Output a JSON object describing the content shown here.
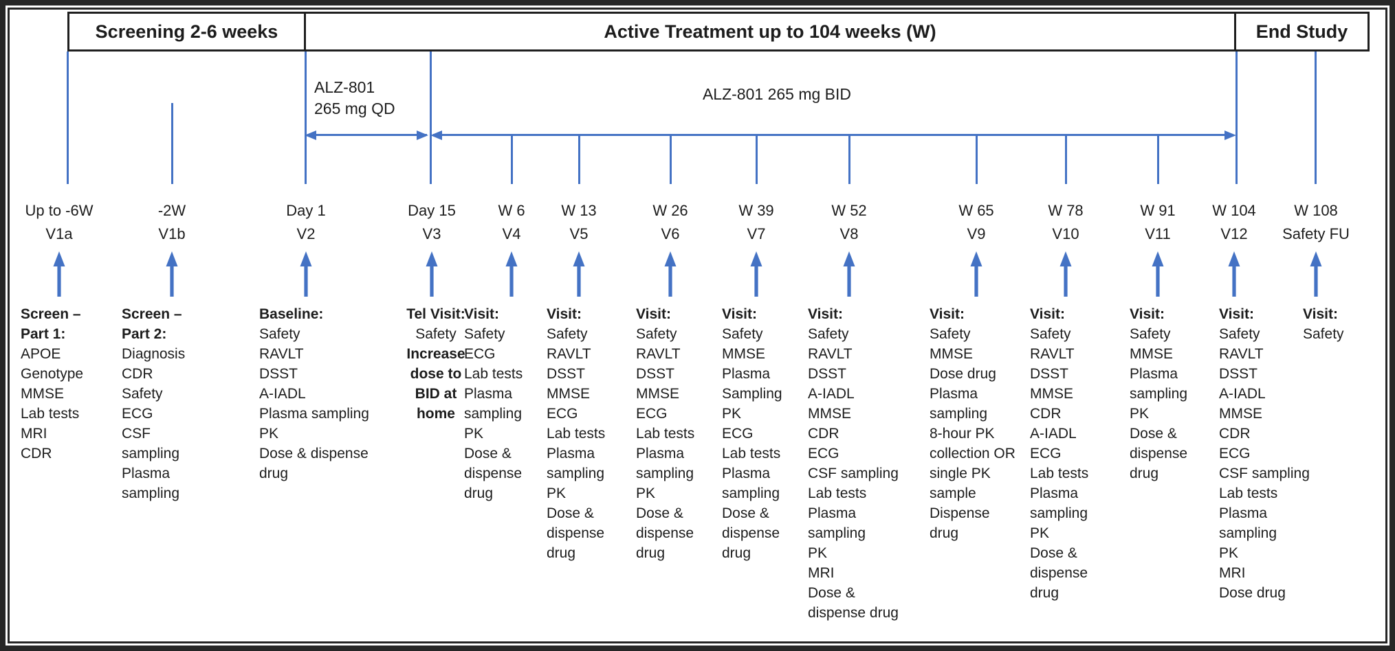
{
  "phases": [
    {
      "label": "Screening 2-6 weeks"
    },
    {
      "label": "Active Treatment up to 104 weeks (W)"
    },
    {
      "label": "End Study"
    }
  ],
  "dosing": {
    "qd_line1": "ALZ-801",
    "qd_line2": "265 mg QD",
    "bid_label": "ALZ-801 265 mg BID"
  },
  "colors": {
    "accent_blue": "#4472C4",
    "border_black": "#262626",
    "text_black": "#1c1c1c"
  },
  "visits": [
    {
      "time": "Up to -6W",
      "visit": "V1a",
      "lines": [
        {
          "text": "Screen –",
          "bold": true
        },
        {
          "text": "Part 1:",
          "bold": true
        },
        {
          "text": "APOE"
        },
        {
          "text": "Genotype"
        },
        {
          "text": "MMSE"
        },
        {
          "text": "Lab tests"
        },
        {
          "text": "MRI"
        },
        {
          "text": "CDR"
        }
      ]
    },
    {
      "time": "-2W",
      "visit": "V1b",
      "lines": [
        {
          "text": "Screen –",
          "bold": true
        },
        {
          "text": "Part 2:",
          "bold": true
        },
        {
          "text": "Diagnosis"
        },
        {
          "text": "CDR"
        },
        {
          "text": "Safety"
        },
        {
          "text": "ECG"
        },
        {
          "text": "CSF"
        },
        {
          "text": "sampling"
        },
        {
          "text": "Plasma"
        },
        {
          "text": "sampling"
        }
      ]
    },
    {
      "time": "Day 1",
      "visit": "V2",
      "lines": [
        {
          "text": "Baseline:",
          "bold": true
        },
        {
          "text": "Safety"
        },
        {
          "text": "RAVLT"
        },
        {
          "text": "DSST"
        },
        {
          "text": "A-IADL"
        },
        {
          "text": "Plasma sampling"
        },
        {
          "text": "PK"
        },
        {
          "text": "Dose & dispense"
        },
        {
          "text": "drug"
        }
      ]
    },
    {
      "time": "Day 15",
      "visit": "V3",
      "lines": [
        {
          "text": "Tel Visit:",
          "bold": true
        },
        {
          "text": "Safety"
        },
        {
          "text": "Increase",
          "bold": true
        },
        {
          "text": "dose to",
          "bold": true
        },
        {
          "text": "BID at",
          "bold": true
        },
        {
          "text": "home",
          "bold": true
        }
      ]
    },
    {
      "time": "W 6",
      "visit": "V4",
      "lines": [
        {
          "text": "Visit:",
          "bold": true
        },
        {
          "text": "Safety"
        },
        {
          "text": "ECG"
        },
        {
          "text": "Lab tests"
        },
        {
          "text": "Plasma"
        },
        {
          "text": "sampling"
        },
        {
          "text": "PK"
        },
        {
          "text": "Dose &"
        },
        {
          "text": "dispense"
        },
        {
          "text": "drug"
        }
      ]
    },
    {
      "time": "W 13",
      "visit": "V5",
      "lines": [
        {
          "text": "Visit:",
          "bold": true
        },
        {
          "text": "Safety"
        },
        {
          "text": "RAVLT"
        },
        {
          "text": "DSST"
        },
        {
          "text": "MMSE"
        },
        {
          "text": "ECG"
        },
        {
          "text": "Lab tests"
        },
        {
          "text": "Plasma"
        },
        {
          "text": "sampling"
        },
        {
          "text": "PK"
        },
        {
          "text": "Dose &"
        },
        {
          "text": "dispense"
        },
        {
          "text": "drug"
        }
      ]
    },
    {
      "time": "W 26",
      "visit": "V6",
      "lines": [
        {
          "text": "Visit:",
          "bold": true
        },
        {
          "text": "Safety"
        },
        {
          "text": "RAVLT"
        },
        {
          "text": "DSST"
        },
        {
          "text": "MMSE"
        },
        {
          "text": "ECG"
        },
        {
          "text": "Lab tests"
        },
        {
          "text": "Plasma"
        },
        {
          "text": "sampling"
        },
        {
          "text": "PK"
        },
        {
          "text": "Dose &"
        },
        {
          "text": "dispense"
        },
        {
          "text": "drug"
        }
      ]
    },
    {
      "time": "W 39",
      "visit": "V7",
      "lines": [
        {
          "text": "Visit:",
          "bold": true
        },
        {
          "text": "Safety"
        },
        {
          "text": "MMSE"
        },
        {
          "text": "Plasma"
        },
        {
          "text": "Sampling"
        },
        {
          "text": "PK"
        },
        {
          "text": "ECG"
        },
        {
          "text": "Lab tests"
        },
        {
          "text": "Plasma"
        },
        {
          "text": "sampling"
        },
        {
          "text": "Dose &"
        },
        {
          "text": "dispense"
        },
        {
          "text": "drug"
        }
      ]
    },
    {
      "time": "W 52",
      "visit": "V8",
      "lines": [
        {
          "text": "Visit:",
          "bold": true
        },
        {
          "text": "Safety"
        },
        {
          "text": "RAVLT"
        },
        {
          "text": "DSST"
        },
        {
          "text": "A-IADL"
        },
        {
          "text": "MMSE"
        },
        {
          "text": "CDR"
        },
        {
          "text": "ECG"
        },
        {
          "text": "CSF sampling"
        },
        {
          "text": "Lab tests"
        },
        {
          "text": "Plasma"
        },
        {
          "text": "sampling"
        },
        {
          "text": "PK"
        },
        {
          "text": "MRI"
        },
        {
          "text": "Dose &"
        },
        {
          "text": "dispense drug"
        }
      ]
    },
    {
      "time": "W 65",
      "visit": "V9",
      "lines": [
        {
          "text": "Visit:",
          "bold": true
        },
        {
          "text": "Safety"
        },
        {
          "text": "MMSE"
        },
        {
          "text": "Dose drug"
        },
        {
          "text": "Plasma"
        },
        {
          "text": "sampling"
        },
        {
          "text": "8-hour PK"
        },
        {
          "text": "collection OR"
        },
        {
          "text": "single PK"
        },
        {
          "text": "sample"
        },
        {
          "text": "Dispense"
        },
        {
          "text": "drug"
        }
      ]
    },
    {
      "time": "W 78",
      "visit": "V10",
      "lines": [
        {
          "text": "Visit:",
          "bold": true
        },
        {
          "text": "Safety"
        },
        {
          "text": "RAVLT"
        },
        {
          "text": "DSST"
        },
        {
          "text": "MMSE"
        },
        {
          "text": "CDR"
        },
        {
          "text": "A-IADL"
        },
        {
          "text": "ECG"
        },
        {
          "text": "Lab tests"
        },
        {
          "text": "Plasma"
        },
        {
          "text": "sampling"
        },
        {
          "text": "PK"
        },
        {
          "text": "Dose &"
        },
        {
          "text": "dispense"
        },
        {
          "text": "drug"
        }
      ]
    },
    {
      "time": "W 91",
      "visit": "V11",
      "lines": [
        {
          "text": "Visit:",
          "bold": true
        },
        {
          "text": "Safety"
        },
        {
          "text": "MMSE"
        },
        {
          "text": "Plasma"
        },
        {
          "text": "sampling"
        },
        {
          "text": "PK"
        },
        {
          "text": "Dose &"
        },
        {
          "text": "dispense"
        },
        {
          "text": "drug"
        }
      ]
    },
    {
      "time": "W 104",
      "visit": "V12",
      "lines": [
        {
          "text": "Visit:",
          "bold": true
        },
        {
          "text": "Safety"
        },
        {
          "text": "RAVLT"
        },
        {
          "text": "DSST"
        },
        {
          "text": "A-IADL"
        },
        {
          "text": "MMSE"
        },
        {
          "text": "CDR"
        },
        {
          "text": "ECG"
        },
        {
          "text": "CSF sampling"
        },
        {
          "text": "Lab tests"
        },
        {
          "text": "Plasma"
        },
        {
          "text": "sampling"
        },
        {
          "text": "PK"
        },
        {
          "text": "MRI"
        },
        {
          "text": "Dose drug"
        }
      ]
    },
    {
      "time": "W 108",
      "visit": "Safety FU",
      "lines": [
        {
          "text": "Visit:",
          "bold": true
        },
        {
          "text": "Safety"
        }
      ]
    }
  ]
}
